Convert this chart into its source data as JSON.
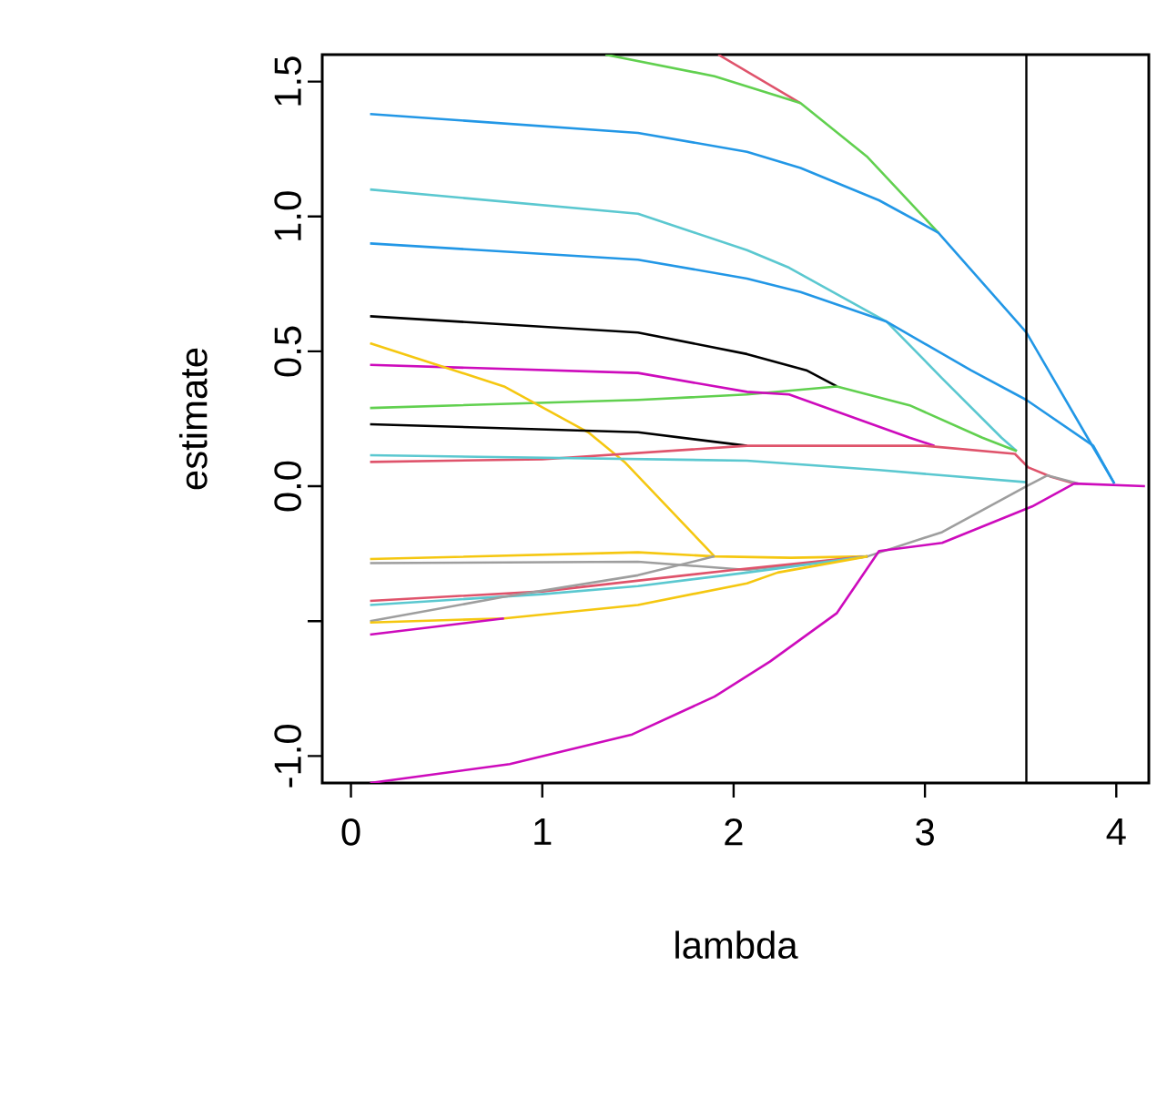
{
  "chart_data": {
    "type": "line",
    "xlabel": "lambda",
    "ylabel": "estimate",
    "xlim": [
      -0.15,
      4.17
    ],
    "ylim": [
      -1.1,
      1.6
    ],
    "xticks": [
      0,
      1,
      2,
      3,
      4
    ],
    "yticks": [
      {
        "value": -1,
        "label": "-1.0"
      },
      {
        "value": -0.5,
        "label": null
      },
      {
        "value": 0,
        "label": "0.0"
      },
      0.5,
      {
        "value": 1,
        "label": "1.0"
      },
      1.5
    ],
    "ref_lines": [
      {
        "axis": "x",
        "value": 3.53,
        "color": "#000000"
      }
    ],
    "series": [
      {
        "color": "#df536b",
        "x": [
          1.92,
          2.35
        ],
        "values": [
          1.6,
          1.42
        ]
      },
      {
        "color": "#61d04f",
        "x": [
          1.33,
          1.9,
          2.35,
          2.7,
          3.07
        ],
        "values": [
          1.6,
          1.52,
          1.42,
          1.22,
          0.94
        ]
      },
      {
        "color": "#2297e6",
        "x": [
          0.1,
          1.5,
          2.07,
          2.35,
          2.76,
          3.07,
          3.53,
          3.85,
          3.99
        ],
        "values": [
          1.38,
          1.31,
          1.24,
          1.18,
          1.06,
          0.94,
          0.57,
          0.18,
          0.01
        ]
      },
      {
        "color": "#5bc8d0",
        "x": [
          0.1,
          1.5,
          2.07,
          2.29,
          2.8,
          3.09,
          3.4,
          3.48
        ],
        "values": [
          1.1,
          1.01,
          0.875,
          0.81,
          0.61,
          0.4,
          0.18,
          0.13
        ]
      },
      {
        "color": "#2297e6",
        "x": [
          0.1,
          1.5,
          2.07,
          2.35,
          2.8,
          3.24,
          3.53,
          3.88,
          3.99
        ],
        "values": [
          0.9,
          0.84,
          0.77,
          0.72,
          0.61,
          0.43,
          0.32,
          0.15,
          0.01
        ]
      },
      {
        "color": "#000000",
        "x": [
          0.1,
          1.5,
          2.07,
          2.38,
          2.54
        ],
        "values": [
          0.63,
          0.57,
          0.49,
          0.43,
          0.37
        ]
      },
      {
        "color": "#61d04f",
        "x": [
          0.1,
          1.5,
          2.07,
          2.54,
          2.92,
          3.3,
          3.48
        ],
        "values": [
          0.29,
          0.32,
          0.34,
          0.37,
          0.3,
          0.18,
          0.13
        ]
      },
      {
        "color": "#cd0bbc",
        "x": [
          0.1,
          1.5,
          2.07,
          2.29,
          2.92,
          3.05
        ],
        "values": [
          0.45,
          0.42,
          0.35,
          0.34,
          0.18,
          0.15
        ]
      },
      {
        "color": "#f5c710",
        "x": [
          0.1,
          0.8,
          1.24,
          1.43,
          1.9
        ],
        "values": [
          0.53,
          0.37,
          0.2,
          0.09,
          -0.26
        ]
      },
      {
        "color": "#000000",
        "x": [
          0.1,
          1.5,
          2.07
        ],
        "values": [
          0.23,
          0.2,
          0.15
        ]
      },
      {
        "color": "#df536b",
        "x": [
          0.1,
          1.0,
          2.07,
          3.0,
          3.47,
          3.54,
          3.66,
          3.78
        ],
        "values": [
          0.09,
          0.1,
          0.15,
          0.15,
          0.12,
          0.07,
          0.035,
          0.01
        ]
      },
      {
        "color": "#5bc8d0",
        "x": [
          0.1,
          2.07,
          2.76,
          3.53
        ],
        "values": [
          0.115,
          0.095,
          0.06,
          0.015
        ]
      },
      {
        "color": "#f5c710",
        "x": [
          0.1,
          1.5,
          1.9,
          2.3,
          2.7
        ],
        "values": [
          -0.27,
          -0.245,
          -0.26,
          -0.265,
          -0.26
        ]
      },
      {
        "color": "#9e9e9e",
        "x": [
          0.1,
          1.5,
          2.07,
          2.7,
          3.09,
          3.53,
          3.64,
          3.8
        ],
        "values": [
          -0.285,
          -0.28,
          -0.31,
          -0.26,
          -0.17,
          0.0,
          0.04,
          0.01
        ]
      },
      {
        "color": "#df536b",
        "x": [
          0.1,
          1.0,
          1.5,
          2.0,
          2.7
        ],
        "values": [
          -0.425,
          -0.39,
          -0.35,
          -0.31,
          -0.26
        ]
      },
      {
        "color": "#5bc8d0",
        "x": [
          0.1,
          1.0,
          1.5,
          2.07,
          2.7
        ],
        "values": [
          -0.44,
          -0.4,
          -0.37,
          -0.32,
          -0.26
        ]
      },
      {
        "color": "#9e9e9e",
        "x": [
          0.1,
          0.8,
          1.5,
          1.9
        ],
        "values": [
          -0.5,
          -0.41,
          -0.33,
          -0.26
        ]
      },
      {
        "color": "#f5c710",
        "x": [
          0.1,
          0.8,
          1.5,
          2.07,
          2.23,
          2.7
        ],
        "values": [
          -0.505,
          -0.49,
          -0.44,
          -0.36,
          -0.32,
          -0.26
        ]
      },
      {
        "color": "#cd0bbc",
        "x": [
          0.1,
          0.8
        ],
        "values": [
          -0.55,
          -0.49
        ]
      },
      {
        "color": "#cd0bbc",
        "x": [
          0.1,
          0.83,
          1.47,
          1.9,
          2.19,
          2.54,
          2.76,
          3.09,
          3.56,
          3.78,
          4.15
        ],
        "values": [
          -1.1,
          -1.03,
          -0.92,
          -0.78,
          -0.65,
          -0.47,
          -0.24,
          -0.21,
          -0.075,
          0.01,
          0
        ]
      }
    ]
  }
}
